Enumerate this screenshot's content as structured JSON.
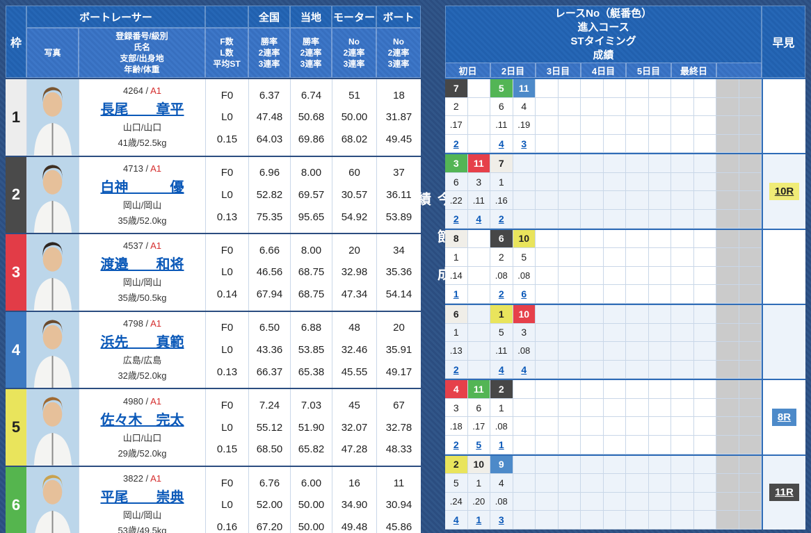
{
  "header": {
    "waku": "枠",
    "photo": "写真",
    "racer_group": "ボートレーサー",
    "info_lines": [
      "登録番号/級別",
      "氏名",
      "支部/出身地",
      "年齢/体重"
    ],
    "fl_lines": [
      "F数",
      "L数",
      "平均ST"
    ],
    "groups": {
      "national": "全国",
      "local": "当地",
      "motor": "モーター",
      "boat": "ボート"
    },
    "rate_lines": [
      "勝率",
      "2連率",
      "3連率"
    ],
    "no_lines": [
      "No",
      "2連率",
      "3連率"
    ],
    "race_info_lines": [
      "レースNo（艇番色）",
      "進入コース",
      "STタイミング",
      "成績"
    ],
    "days": [
      "初日",
      "2日目",
      "3日目",
      "4日目",
      "5日目",
      "最終日"
    ],
    "hayami": "早見",
    "series_label": "今節成績"
  },
  "colors": {
    "boat_white": "#f0eee8",
    "boat_black": "#474747",
    "boat_red": "#e6404a",
    "boat_blue": "#4d8ac9",
    "boat_yellow": "#e9e45c",
    "boat_green": "#53b555",
    "header_blue": "#2160ae",
    "row_separator": "#2f6cb7",
    "link": "#0a58b8",
    "class_red": "#d42b2b"
  },
  "racers": [
    {
      "frame": "1",
      "frame_color": "white",
      "reg_no": "4264",
      "class": "A1",
      "name": "長尾　　章平",
      "branch": "山口/山口",
      "age_weight": "41歳/52.5kg",
      "f_count": "F0",
      "l_count": "L0",
      "avg_st": "0.15",
      "national": [
        "6.37",
        "47.48",
        "64.03"
      ],
      "local": [
        "6.74",
        "50.68",
        "69.86"
      ],
      "motor": [
        "51",
        "50.00",
        "68.02"
      ],
      "boat": [
        "18",
        "31.87",
        "49.45"
      ],
      "photo_hair": "#7a5530",
      "series": [
        {
          "race": "7",
          "color": "black",
          "course": "2",
          "st": ".17",
          "result": "2"
        },
        null,
        {
          "race": "5",
          "color": "green",
          "course": "6",
          "st": ".11",
          "result": "4"
        },
        {
          "race": "11",
          "color": "blue",
          "course": "4",
          "st": ".19",
          "result": "3"
        },
        null,
        null,
        null,
        null,
        null,
        null,
        null,
        null,
        null,
        null
      ],
      "hayami": null
    },
    {
      "frame": "2",
      "frame_color": "black",
      "reg_no": "4713",
      "class": "A1",
      "name": "白神　　　優",
      "branch": "岡山/岡山",
      "age_weight": "35歳/52.0kg",
      "f_count": "F0",
      "l_count": "L0",
      "avg_st": "0.13",
      "national": [
        "6.96",
        "52.82",
        "75.35"
      ],
      "local": [
        "8.00",
        "69.57",
        "95.65"
      ],
      "motor": [
        "60",
        "30.57",
        "54.92"
      ],
      "boat": [
        "37",
        "36.11",
        "53.89"
      ],
      "photo_hair": "#3f2f22",
      "series": [
        {
          "race": "3",
          "color": "green",
          "course": "6",
          "st": ".22",
          "result": "2"
        },
        {
          "race": "11",
          "color": "red",
          "course": "3",
          "st": ".11",
          "result": "4"
        },
        {
          "race": "7",
          "color": "white",
          "course": "1",
          "st": ".16",
          "result": "2"
        },
        null,
        null,
        null,
        null,
        null,
        null,
        null,
        null,
        null,
        null,
        null
      ],
      "hayami": {
        "label": "10R",
        "color": "yellow"
      }
    },
    {
      "frame": "3",
      "frame_color": "red",
      "reg_no": "4537",
      "class": "A1",
      "name": "渡邉　　和将",
      "branch": "岡山/岡山",
      "age_weight": "35歳/50.5kg",
      "f_count": "F0",
      "l_count": "L0",
      "avg_st": "0.14",
      "national": [
        "6.66",
        "46.56",
        "67.94"
      ],
      "local": [
        "8.00",
        "68.75",
        "68.75"
      ],
      "motor": [
        "20",
        "32.98",
        "47.34"
      ],
      "boat": [
        "34",
        "35.36",
        "54.14"
      ],
      "photo_hair": "#2f2620",
      "series": [
        {
          "race": "8",
          "color": "white",
          "course": "1",
          "st": ".14",
          "result": "1"
        },
        null,
        {
          "race": "6",
          "color": "black",
          "course": "2",
          "st": ".08",
          "result": "2"
        },
        {
          "race": "10",
          "color": "yellow",
          "course": "5",
          "st": ".08",
          "result": "6"
        },
        null,
        null,
        null,
        null,
        null,
        null,
        null,
        null,
        null,
        null
      ],
      "hayami": null
    },
    {
      "frame": "4",
      "frame_color": "blue",
      "reg_no": "4798",
      "class": "A1",
      "name": "浜先　　真範",
      "branch": "広島/広島",
      "age_weight": "32歳/52.0kg",
      "f_count": "F0",
      "l_count": "L0",
      "avg_st": "0.13",
      "national": [
        "6.50",
        "43.36",
        "66.37"
      ],
      "local": [
        "6.88",
        "53.85",
        "65.38"
      ],
      "motor": [
        "48",
        "32.46",
        "45.55"
      ],
      "boat": [
        "20",
        "35.91",
        "49.17"
      ],
      "photo_hair": "#6b4a2c",
      "series": [
        {
          "race": "6",
          "color": "white",
          "course": "1",
          "st": ".13",
          "result": "2"
        },
        null,
        {
          "race": "1",
          "color": "yellow",
          "course": "5",
          "st": ".11",
          "result": "4"
        },
        {
          "race": "10",
          "color": "red",
          "course": "3",
          "st": ".08",
          "result": "4"
        },
        null,
        null,
        null,
        null,
        null,
        null,
        null,
        null,
        null,
        null
      ],
      "hayami": null
    },
    {
      "frame": "5",
      "frame_color": "yellow",
      "reg_no": "4980",
      "class": "A1",
      "name": "佐々木　完太",
      "branch": "山口/山口",
      "age_weight": "29歳/52.0kg",
      "f_count": "F0",
      "l_count": "L0",
      "avg_st": "0.15",
      "national": [
        "7.24",
        "55.12",
        "68.50"
      ],
      "local": [
        "7.03",
        "51.90",
        "65.82"
      ],
      "motor": [
        "45",
        "32.07",
        "47.28"
      ],
      "boat": [
        "67",
        "32.78",
        "48.33"
      ],
      "photo_hair": "#a06a32",
      "series": [
        {
          "race": "4",
          "color": "red",
          "course": "3",
          "st": ".18",
          "result": "2"
        },
        {
          "race": "11",
          "color": "green",
          "course": "6",
          "st": ".17",
          "result": "5"
        },
        {
          "race": "2",
          "color": "black",
          "course": "1",
          "st": ".08",
          "result": "1"
        },
        null,
        null,
        null,
        null,
        null,
        null,
        null,
        null,
        null,
        null,
        null
      ],
      "hayami": {
        "label": "8R",
        "color": "blue"
      }
    },
    {
      "frame": "6",
      "frame_color": "green",
      "reg_no": "3822",
      "class": "A1",
      "name": "平尾　　崇典",
      "branch": "岡山/岡山",
      "age_weight": "53歳/49.5kg",
      "f_count": "F0",
      "l_count": "L0",
      "avg_st": "0.16",
      "national": [
        "6.76",
        "52.00",
        "67.20"
      ],
      "local": [
        "6.00",
        "50.00",
        "50.00"
      ],
      "motor": [
        "16",
        "34.90",
        "49.48"
      ],
      "boat": [
        "11",
        "30.94",
        "45.86"
      ],
      "photo_hair": "#c9a24e",
      "series": [
        {
          "race": "2",
          "color": "yellow",
          "course": "5",
          "st": ".24",
          "result": "4"
        },
        {
          "race": "10",
          "color": "white",
          "course": "1",
          "st": ".20",
          "result": "1"
        },
        {
          "race": "9",
          "color": "blue",
          "course": "4",
          "st": ".08",
          "result": "3"
        },
        null,
        null,
        null,
        null,
        null,
        null,
        null,
        null,
        null,
        null,
        null
      ],
      "hayami": {
        "label": "11R",
        "color": "black"
      }
    }
  ]
}
